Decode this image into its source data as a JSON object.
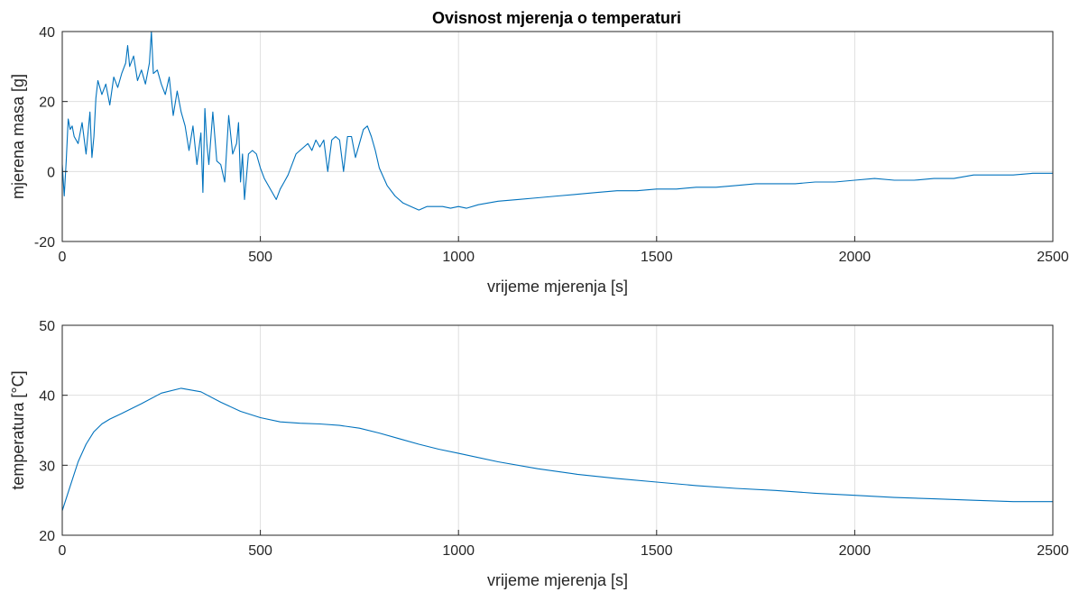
{
  "colors": {
    "series": "#0072bd",
    "axes": "#262626",
    "grid": "#dfdfdf"
  },
  "chart_data": [
    {
      "type": "line",
      "title": "Ovisnost mjerenja o temperaturi",
      "xlabel": "vrijeme mjerenja [s]",
      "ylabel": "mjerena masa [g]",
      "xlim": [
        0,
        2500
      ],
      "ylim": [
        -20,
        40
      ],
      "xticks": [
        0,
        500,
        1000,
        1500,
        2000,
        2500
      ],
      "yticks": [
        -20,
        0,
        20,
        40
      ],
      "xtick_labels": [
        "0",
        "500",
        "1000",
        "1500",
        "2000",
        "2500"
      ],
      "ytick_labels": [
        "-20",
        "0",
        "20",
        "40"
      ],
      "grid": true,
      "series": [
        {
          "x": [
            0,
            5,
            10,
            15,
            20,
            25,
            30,
            40,
            50,
            60,
            70,
            75,
            80,
            85,
            90,
            100,
            110,
            120,
            130,
            140,
            150,
            160,
            165,
            170,
            180,
            190,
            200,
            210,
            220,
            225,
            230,
            240,
            250,
            260,
            270,
            280,
            290,
            300,
            310,
            320,
            330,
            340,
            350,
            355,
            360,
            365,
            370,
            380,
            390,
            400,
            410,
            420,
            430,
            440,
            445,
            450,
            455,
            460,
            470,
            480,
            490,
            500,
            510,
            520,
            530,
            540,
            550,
            560,
            570,
            580,
            590,
            600,
            610,
            620,
            630,
            640,
            650,
            660,
            670,
            680,
            690,
            700,
            710,
            720,
            730,
            740,
            750,
            760,
            770,
            780,
            790,
            800,
            820,
            840,
            860,
            880,
            900,
            920,
            940,
            960,
            980,
            1000,
            1020,
            1050,
            1100,
            1150,
            1200,
            1250,
            1300,
            1350,
            1400,
            1450,
            1500,
            1550,
            1600,
            1650,
            1700,
            1750,
            1800,
            1850,
            1900,
            1950,
            2000,
            2050,
            2100,
            2150,
            2200,
            2250,
            2300,
            2350,
            2400,
            2450,
            2500
          ],
          "y": [
            2,
            -7,
            3,
            15,
            12,
            13,
            10,
            8,
            14,
            5,
            17,
            4,
            10,
            21,
            26,
            22,
            25,
            19,
            27,
            24,
            28,
            31,
            36,
            30,
            33,
            26,
            29,
            25,
            31,
            40,
            28,
            29,
            25,
            22,
            27,
            16,
            23,
            17,
            13,
            6,
            13,
            2,
            11,
            -6,
            18,
            8,
            2,
            17,
            3,
            2,
            -3,
            16,
            5,
            8,
            14,
            -3,
            5,
            -8,
            5,
            6,
            5,
            1,
            -2,
            -4,
            -6,
            -8,
            -5,
            -3,
            -1,
            2,
            5,
            6,
            7,
            8,
            6,
            9,
            7,
            9,
            0,
            9,
            10,
            9,
            0,
            10,
            10,
            4,
            8,
            12,
            13,
            10,
            6,
            1,
            -4,
            -7,
            -9,
            -10,
            -11,
            -10,
            -10,
            -10,
            -10.5,
            -10,
            -10.5,
            -9.5,
            -8.5,
            -8,
            -7.5,
            -7,
            -6.5,
            -6,
            -5.5,
            -5.5,
            -5,
            -5,
            -4.5,
            -4.5,
            -4,
            -3.5,
            -3.5,
            -3.5,
            -3,
            -3,
            -2.5,
            -2,
            -2.5,
            -2.5,
            -2,
            -2,
            -1,
            -1,
            -1,
            -0.5,
            -0.5
          ]
        }
      ]
    },
    {
      "type": "line",
      "xlabel": "vrijeme mjerenja [s]",
      "ylabel": "temperatura [°C]",
      "xlim": [
        0,
        2500
      ],
      "ylim": [
        20,
        50
      ],
      "xticks": [
        0,
        500,
        1000,
        1500,
        2000,
        2500
      ],
      "yticks": [
        20,
        30,
        40,
        50
      ],
      "xtick_labels": [
        "0",
        "500",
        "1000",
        "1500",
        "2000",
        "2500"
      ],
      "ytick_labels": [
        "20",
        "30",
        "40",
        "50"
      ],
      "grid": true,
      "series": [
        {
          "x": [
            0,
            20,
            40,
            60,
            80,
            100,
            120,
            150,
            200,
            250,
            300,
            350,
            400,
            450,
            500,
            550,
            600,
            650,
            700,
            750,
            800,
            850,
            900,
            950,
            1000,
            1100,
            1200,
            1300,
            1400,
            1500,
            1600,
            1700,
            1800,
            1900,
            2000,
            2100,
            2200,
            2300,
            2400,
            2500
          ],
          "y": [
            23.5,
            27,
            30.5,
            33,
            34.8,
            35.9,
            36.6,
            37.4,
            38.8,
            40.3,
            41,
            40.5,
            39,
            37.7,
            36.8,
            36.2,
            36,
            35.9,
            35.7,
            35.3,
            34.6,
            33.8,
            33,
            32.3,
            31.7,
            30.5,
            29.5,
            28.7,
            28.1,
            27.6,
            27.1,
            26.7,
            26.4,
            26,
            25.7,
            25.4,
            25.2,
            25,
            24.8,
            24.8
          ]
        }
      ]
    }
  ]
}
